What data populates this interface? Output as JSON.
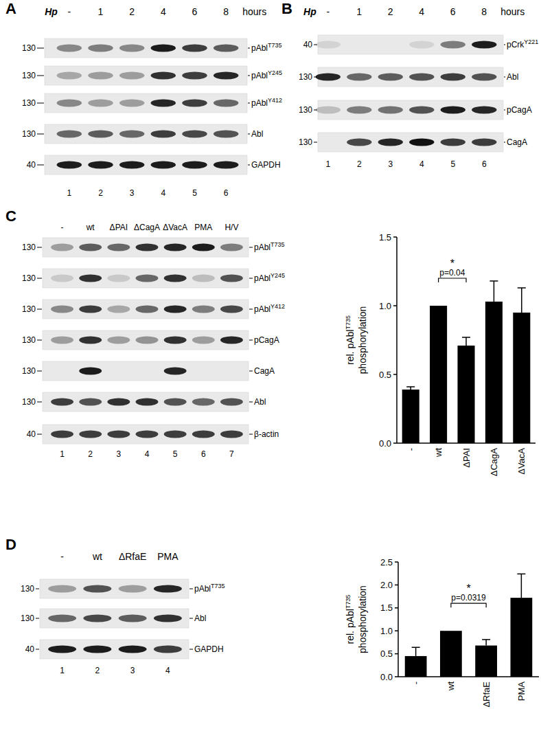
{
  "panels": [
    {
      "letter": "A",
      "header_lead": "Hp",
      "lanes": [
        "-",
        "1",
        "2",
        "4",
        "6",
        "8"
      ],
      "header_tail": "hours",
      "rows": [
        {
          "name": "pAbl",
          "sup": "T735",
          "mw": 130,
          "bands": [
            0.45,
            0.5,
            0.45,
            0.95,
            0.8,
            0.65
          ]
        },
        {
          "name": "pAbl",
          "sup": "Y245",
          "mw": 130,
          "bands": [
            0.3,
            0.35,
            0.35,
            0.85,
            0.8,
            0.9
          ]
        },
        {
          "name": "pAbl",
          "sup": "Y412",
          "mw": 130,
          "bands": [
            0.45,
            0.35,
            0.35,
            0.9,
            0.8,
            0.6
          ]
        },
        {
          "name": "Abl",
          "mw": 130,
          "bands": [
            0.6,
            0.65,
            0.6,
            0.8,
            0.75,
            0.7
          ]
        },
        {
          "name": "GAPDH",
          "mw": 40,
          "bands": [
            0.95,
            0.95,
            0.95,
            0.95,
            0.95,
            0.95
          ]
        }
      ],
      "lane_numbers": [
        1,
        2,
        3,
        4,
        5,
        6
      ]
    },
    {
      "letter": "B",
      "header_lead": "Hp",
      "lanes": [
        "-",
        "1",
        "2",
        "4",
        "6",
        "8"
      ],
      "header_tail": "hours",
      "rows": [
        {
          "name": "pCrk",
          "sup": "Y221",
          "mw": 40,
          "bands": [
            0.1,
            null,
            null,
            0.1,
            0.5,
            0.95
          ]
        },
        {
          "name": "Abl",
          "mw": 130,
          "bands": [
            0.9,
            0.6,
            0.65,
            0.7,
            0.8,
            0.7
          ]
        },
        {
          "name": "pCagA",
          "mw": 130,
          "bands": [
            0.2,
            0.5,
            0.55,
            0.7,
            0.95,
            0.9
          ]
        },
        {
          "name": "CagA",
          "mw": 130,
          "bands": [
            null,
            0.75,
            0.9,
            1.0,
            0.8,
            0.8
          ]
        }
      ],
      "lane_numbers": [
        1,
        2,
        3,
        4,
        5,
        6
      ]
    },
    {
      "letter": "C",
      "lanes": [
        "-",
        "wt",
        "ΔPAI",
        "ΔCagA",
        "ΔVacA",
        "PMA",
        "H/V"
      ],
      "rows": [
        {
          "name": "pAbl",
          "sup": "T735",
          "mw": 130,
          "bands": [
            0.35,
            0.65,
            0.6,
            0.85,
            0.9,
            0.95,
            0.5
          ]
        },
        {
          "name": "pAbl",
          "sup": "Y245",
          "mw": 130,
          "bands": [
            0.15,
            0.85,
            0.15,
            0.6,
            0.85,
            0.2,
            0.7
          ]
        },
        {
          "name": "pAbl",
          "sup": "Y412",
          "mw": 130,
          "bands": [
            0.45,
            0.8,
            0.3,
            0.6,
            0.9,
            0.5,
            0.75
          ]
        },
        {
          "name": "pCagA",
          "mw": 130,
          "bands": [
            0.35,
            0.85,
            0.35,
            0.4,
            0.85,
            0.35,
            0.9
          ]
        },
        {
          "name": "CagA",
          "mw": 130,
          "bands": [
            null,
            0.95,
            null,
            null,
            0.9,
            null,
            null
          ]
        },
        {
          "name": "Abl",
          "mw": 130,
          "bands": [
            0.8,
            0.7,
            0.85,
            0.85,
            0.7,
            0.6,
            0.7
          ]
        },
        {
          "name": "β-actin",
          "mw": 40,
          "bands": [
            0.8,
            0.8,
            0.8,
            0.8,
            0.8,
            0.8,
            0.8
          ]
        }
      ],
      "lane_numbers": [
        1,
        2,
        3,
        4,
        5,
        6,
        7
      ]
    },
    {
      "letter": "D",
      "lanes": [
        "-",
        "wt",
        "ΔRfaE",
        "PMA"
      ],
      "rows": [
        {
          "name": "pAbl",
          "sup": "T735",
          "mw": 130,
          "bands": [
            0.35,
            0.7,
            0.35,
            0.9
          ]
        },
        {
          "name": "Abl",
          "mw": 130,
          "bands": [
            0.6,
            0.75,
            0.65,
            0.85
          ]
        },
        {
          "name": "GAPDH",
          "mw": 40,
          "bands": [
            0.95,
            0.95,
            0.95,
            0.8
          ]
        }
      ],
      "lane_numbers": [
        1,
        2,
        3,
        4
      ]
    }
  ],
  "chart_data": [
    {
      "type": "bar",
      "categories": [
        "-",
        "wt",
        "ΔPAI",
        "ΔCagA",
        "ΔVacA"
      ],
      "values": [
        0.39,
        1.0,
        0.71,
        1.03,
        0.95
      ],
      "errors": [
        0.02,
        null,
        0.06,
        0.15,
        0.18
      ],
      "color": "#000000",
      "ylim": [
        0,
        1.5
      ],
      "yticks": [
        {
          "value": 0,
          "label": "0.0"
        },
        {
          "value": 0.5,
          "label": "0.5"
        },
        {
          "value": 1,
          "label": "1.0"
        },
        {
          "value": 1.5,
          "label": "1.5"
        }
      ],
      "y_label": {
        "text": "rel. pAbl",
        "sup": "T735",
        "line2": "phosphorylation"
      },
      "annotations": [
        {
          "from": "wt",
          "to": "ΔPAI",
          "star": "*",
          "text": "p=0.04"
        }
      ]
    },
    {
      "type": "bar",
      "categories": [
        "-",
        "wt",
        "ΔRfaE",
        "PMA"
      ],
      "values": [
        0.45,
        1.0,
        0.68,
        1.72
      ],
      "errors": [
        0.19,
        null,
        0.13,
        0.52
      ],
      "color": "#000000",
      "ylim": [
        0,
        2.5
      ],
      "yticks": [
        {
          "value": 0,
          "label": "0.0"
        },
        {
          "value": 0.5,
          "label": "0.5"
        },
        {
          "value": 1,
          "label": "1.0"
        },
        {
          "value": 1.5,
          "label": "1.5"
        },
        {
          "value": 2,
          "label": "2.0"
        },
        {
          "value": 2.5,
          "label": "2.5"
        }
      ],
      "y_label": {
        "text": "rel. pAbl",
        "sup": "T735",
        "line2": "phosphorylation"
      },
      "annotations": [
        {
          "from": "wt",
          "to": "ΔRfaE",
          "star": "*",
          "text": "p=0.0319"
        }
      ]
    }
  ]
}
